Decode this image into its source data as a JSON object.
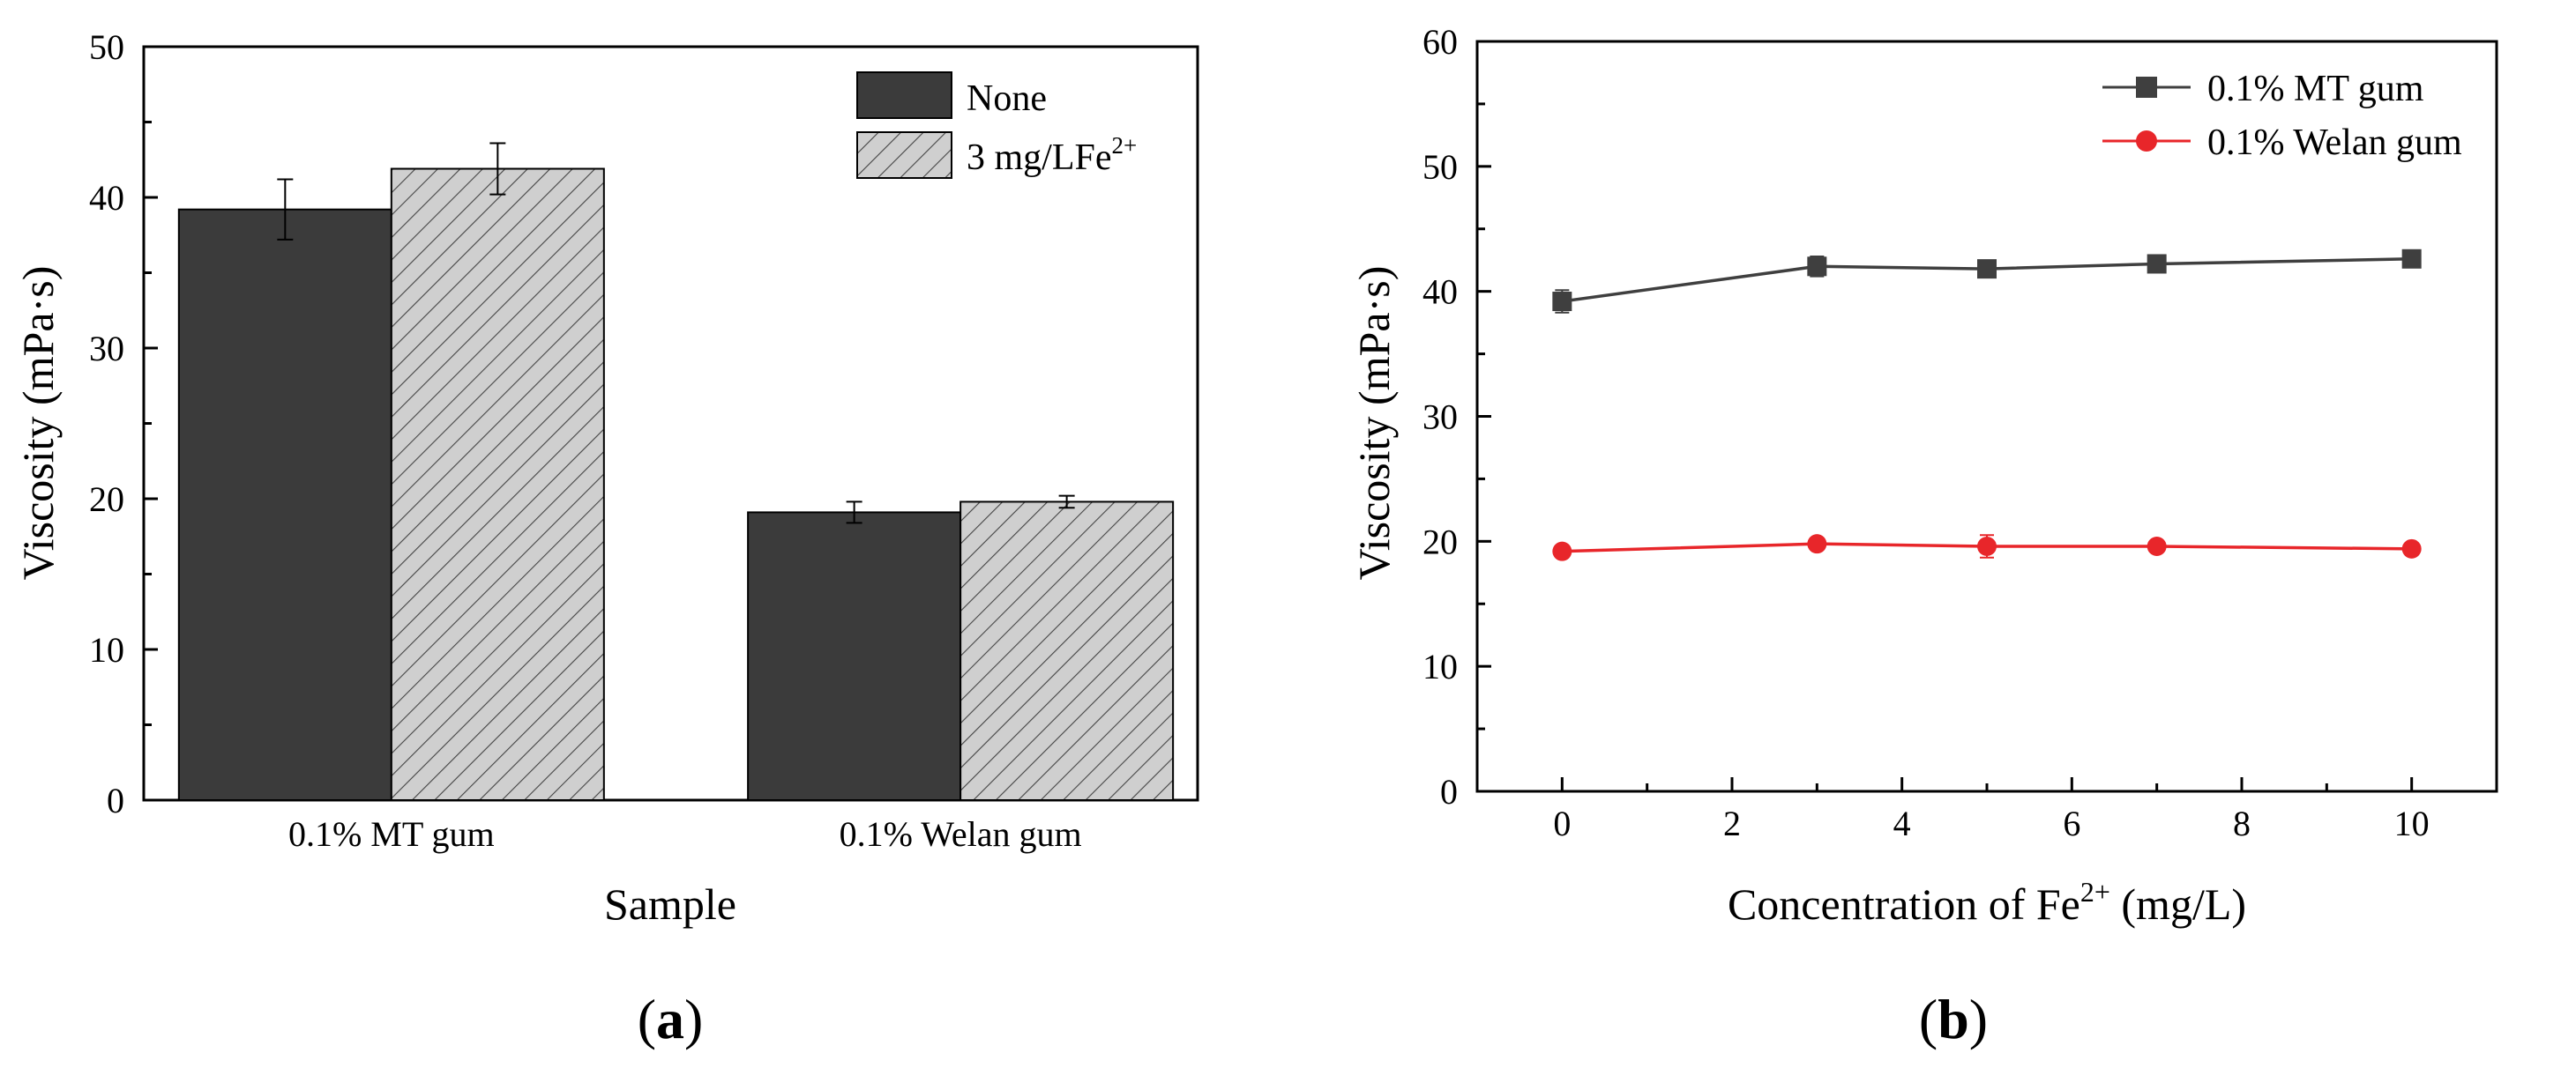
{
  "chart_data": [
    {
      "type": "bar",
      "panel_label": "a",
      "title": "",
      "xlabel": "Sample",
      "ylabel": "Viscosity (mPa·s)",
      "ylim": [
        0,
        50
      ],
      "yticks": [
        "0",
        "10",
        "20",
        "30",
        "40",
        "50"
      ],
      "categories": [
        "0.1% MT gum",
        "0.1% Welan gum"
      ],
      "series": [
        {
          "name": "None",
          "values": [
            39.2,
            19.1
          ],
          "errors": [
            2.0,
            0.7
          ],
          "color": "#3b3b3b",
          "pattern": "solid"
        },
        {
          "name": "3 mg/LFe",
          "name_sup": "2+",
          "values": [
            41.9,
            19.8
          ],
          "errors": [
            1.7,
            0.4
          ],
          "color": "#c8c8c8",
          "pattern": "hatched"
        }
      ],
      "legend_position": "top-right",
      "grid": false
    },
    {
      "type": "line",
      "panel_label": "b",
      "title": "",
      "xlabel": "Concentration of Fe",
      "xlabel_sup": "2+",
      "xlabel_unit": " (mg/L)",
      "ylabel": "Viscosity (mPa·s)",
      "xlim": [
        -1,
        11
      ],
      "ylim": [
        0,
        60
      ],
      "xticks": [
        "0",
        "2",
        "4",
        "6",
        "8",
        "10"
      ],
      "yticks": [
        "0",
        "10",
        "20",
        "30",
        "40",
        "50",
        "60"
      ],
      "x": [
        0,
        3,
        5,
        7,
        10
      ],
      "series": [
        {
          "name": "0.1% MT gum",
          "values": [
            39.2,
            42.0,
            41.8,
            42.2,
            42.6
          ],
          "errors": [
            0.9,
            0.8,
            0.4,
            0.4,
            0.3
          ],
          "color": "#3f3f3f",
          "marker": "square"
        },
        {
          "name": "0.1% Welan gum",
          "values": [
            19.2,
            19.8,
            19.6,
            19.6,
            19.4
          ],
          "errors": [
            0.3,
            0.3,
            0.9,
            0.3,
            0.3
          ],
          "color": "#e8262a",
          "marker": "circle"
        }
      ],
      "legend_position": "top-right",
      "grid": false
    }
  ]
}
